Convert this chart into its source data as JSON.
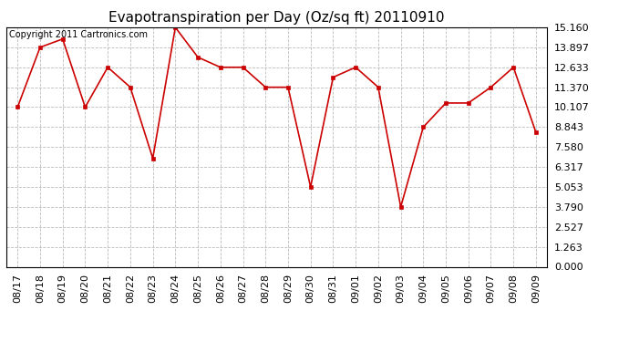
{
  "title": "Evapotranspiration per Day (Oz/sq ft) 20110910",
  "copyright": "Copyright 2011 Cartronics.com",
  "dates": [
    "08/17",
    "08/18",
    "08/19",
    "08/20",
    "08/21",
    "08/22",
    "08/23",
    "08/24",
    "08/25",
    "08/26",
    "08/27",
    "08/28",
    "08/29",
    "08/30",
    "08/31",
    "09/01",
    "09/02",
    "09/03",
    "09/04",
    "09/05",
    "09/06",
    "09/07",
    "09/08",
    "09/09"
  ],
  "values": [
    10.107,
    13.897,
    14.423,
    10.107,
    12.633,
    11.37,
    6.864,
    15.16,
    13.27,
    12.633,
    12.633,
    11.37,
    11.37,
    5.053,
    12.0,
    12.633,
    11.37,
    3.79,
    8.843,
    10.37,
    10.37,
    11.37,
    12.633,
    8.5
  ],
  "line_color": "#cc0000",
  "marker": "s",
  "marker_size": 3,
  "marker_color": "#cc0000",
  "bg_color": "#ffffff",
  "plot_bg_color": "#ffffff",
  "grid_color": "#bbbbbb",
  "grid_style": "--",
  "ylim": [
    0.0,
    15.16
  ],
  "yticks": [
    0.0,
    1.263,
    2.527,
    3.79,
    5.053,
    6.317,
    7.58,
    8.843,
    10.107,
    11.37,
    12.633,
    13.897,
    15.16
  ],
  "title_fontsize": 11,
  "copyright_fontsize": 7,
  "tick_fontsize": 8,
  "border_color": "#000000"
}
